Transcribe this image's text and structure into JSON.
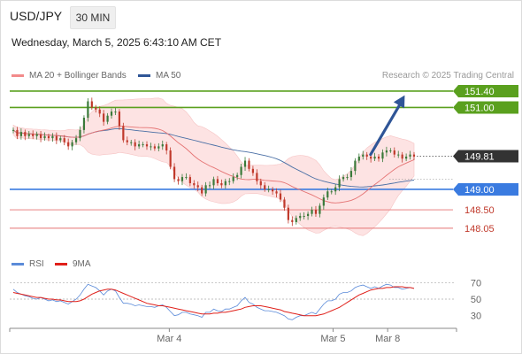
{
  "header": {
    "symbol": "USD/JPY",
    "timeframe": "30 MIN",
    "datetime": "Wednesday, March 5, 2025 6:43:10 AM CET",
    "credit": "Research © 2025 Trading Central"
  },
  "legend": {
    "main": [
      {
        "label": "MA 20 + Bollinger Bands",
        "color": "#f28b8b"
      },
      {
        "label": "MA 50",
        "color": "#2f5597"
      }
    ],
    "rsi": [
      {
        "label": "RSI",
        "color": "#5b8bd9"
      },
      {
        "label": "9MA",
        "color": "#e0201a"
      }
    ]
  },
  "colors": {
    "up": "#3a7a3a",
    "down": "#c0392b",
    "band": "#fde3e3",
    "resistance": "#5aa01e",
    "pivot": "#3a7be0",
    "support": "#e57373",
    "arrow": "#2f5597"
  },
  "chart_data": [
    {
      "type": "candlestick",
      "x_axis_labels": [
        {
          "label": "Mar 4",
          "t": 46
        },
        {
          "label": "Mar 5",
          "t": 94
        },
        {
          "label": "Mar 8",
          "t": 110
        }
      ],
      "ylim": [
        147.55,
        151.55
      ],
      "t_range": [
        0,
        118
      ],
      "last_price": 149.81,
      "levels": [
        {
          "value": 151.4,
          "label": "151.40",
          "kind": "resistance"
        },
        {
          "value": 151.0,
          "label": "151.00",
          "kind": "resistance"
        },
        {
          "value": 149.81,
          "label": "149.81",
          "kind": "last"
        },
        {
          "value": 149.0,
          "label": "149.00",
          "kind": "pivot"
        },
        {
          "value": 148.5,
          "label": "148.50",
          "kind": "support"
        },
        {
          "value": 148.05,
          "label": "148.05",
          "kind": "support"
        }
      ],
      "forecast_arrow": {
        "from": [
          105,
          149.85
        ],
        "to": [
          115,
          151.3
        ]
      },
      "closes": [
        150.45,
        150.3,
        150.4,
        150.3,
        150.35,
        150.3,
        150.35,
        150.25,
        150.3,
        150.25,
        150.3,
        150.2,
        150.25,
        150.15,
        150.05,
        150.15,
        150.25,
        150.45,
        150.75,
        151.15,
        151.0,
        150.95,
        150.85,
        150.65,
        150.8,
        150.9,
        150.9,
        150.55,
        150.2,
        150.15,
        150.15,
        150.05,
        150.1,
        150.1,
        150.05,
        150.05,
        150.0,
        150.05,
        150.1,
        149.95,
        149.55,
        149.25,
        149.2,
        149.3,
        149.3,
        149.15,
        149.1,
        149.05,
        148.9,
        149.1,
        149.1,
        149.25,
        149.15,
        149.1,
        149.2,
        149.2,
        149.3,
        149.35,
        149.55,
        149.7,
        149.5,
        149.4,
        149.2,
        149.1,
        149.0,
        149.0,
        148.95,
        148.9,
        148.75,
        148.55,
        148.25,
        148.2,
        148.3,
        148.35,
        148.35,
        148.4,
        148.5,
        148.4,
        148.6,
        148.8,
        148.95,
        148.95,
        149.05,
        149.25,
        149.3,
        149.3,
        149.45,
        149.7,
        149.8,
        149.85,
        149.8,
        149.75,
        149.8,
        149.75,
        149.9,
        149.95,
        149.95,
        149.85,
        149.85,
        149.75,
        149.8,
        149.85,
        149.8
      ],
      "rsi": {
        "ylim": [
          20,
          80
        ],
        "ticks": [
          30,
          50,
          70
        ],
        "rsi": [
          62,
          58,
          56,
          54,
          53,
          51,
          50,
          52,
          50,
          48,
          49,
          47,
          48,
          46,
          44,
          47,
          50,
          55,
          62,
          68,
          66,
          64,
          60,
          55,
          60,
          62,
          60,
          52,
          45,
          45,
          44,
          42,
          43,
          42,
          41,
          41,
          40,
          42,
          43,
          40,
          35,
          30,
          31,
          34,
          34,
          32,
          31,
          30,
          28,
          34,
          34,
          38,
          36,
          35,
          38,
          38,
          40,
          42,
          48,
          52,
          46,
          44,
          40,
          38,
          36,
          36,
          35,
          34,
          32,
          30,
          26,
          25,
          28,
          30,
          30,
          32,
          34,
          32,
          38,
          44,
          48,
          48,
          50,
          56,
          58,
          58,
          60,
          64,
          66,
          67,
          65,
          63,
          65,
          63,
          66,
          68,
          67,
          64,
          64,
          62,
          63,
          64,
          63
        ],
        "ma9": [
          58,
          57,
          56,
          55,
          54,
          53,
          52,
          52,
          51,
          50,
          50,
          49,
          49,
          48,
          47,
          47,
          47,
          48,
          50,
          53,
          56,
          58,
          60,
          61,
          62,
          62,
          61,
          59,
          57,
          55,
          53,
          51,
          49,
          47,
          45,
          44,
          43,
          42,
          42,
          41,
          40,
          39,
          38,
          37,
          36,
          35,
          34,
          33,
          32,
          32,
          32,
          33,
          33,
          34,
          34,
          35,
          36,
          37,
          38,
          40,
          41,
          42,
          42,
          42,
          41,
          40,
          39,
          38,
          37,
          35,
          34,
          33,
          32,
          31,
          30,
          30,
          30,
          30,
          31,
          32,
          34,
          36,
          38,
          40,
          43,
          46,
          49,
          52,
          55,
          57,
          59,
          61,
          62,
          63,
          63,
          64,
          64,
          65,
          65,
          65,
          64,
          64,
          63
        ]
      }
    }
  ]
}
